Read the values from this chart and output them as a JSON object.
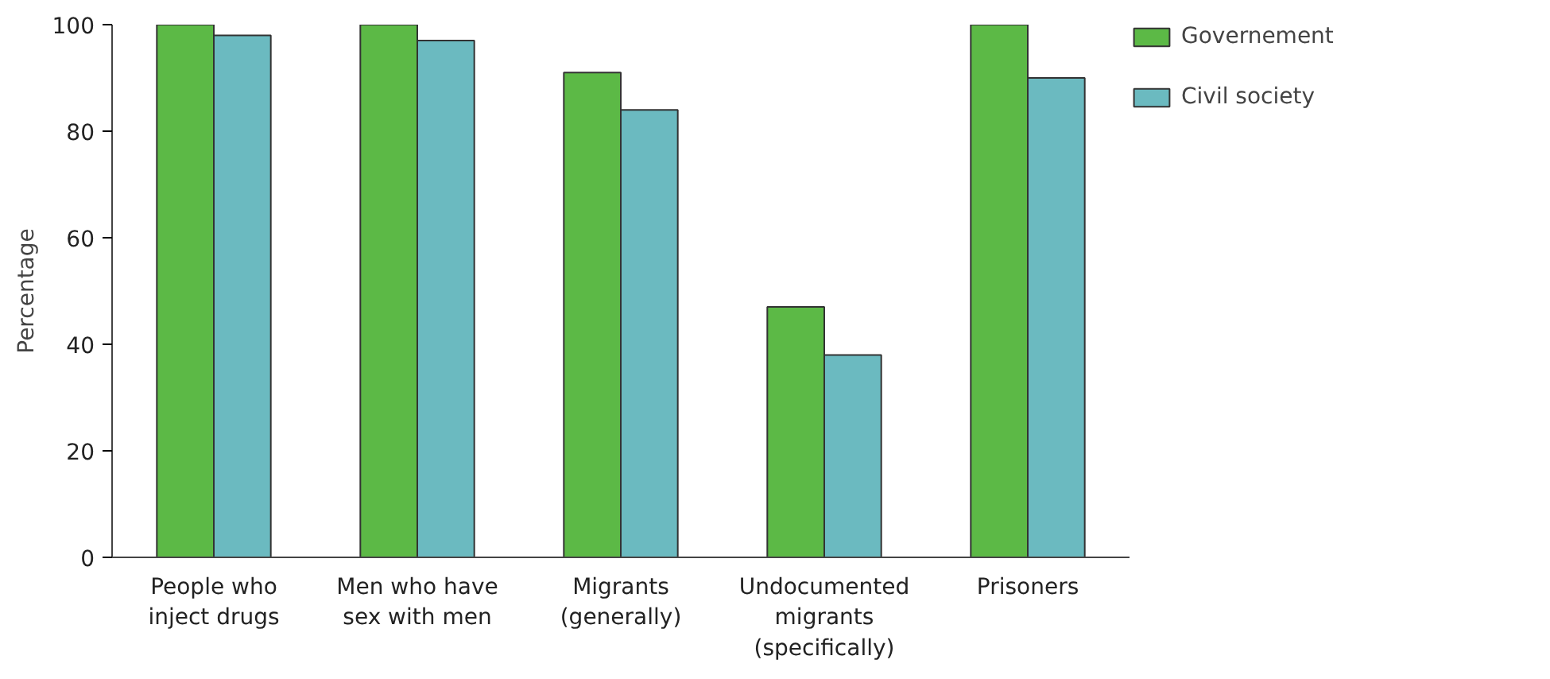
{
  "chart_data": {
    "type": "bar",
    "ylabel": "Percentage",
    "categories": [
      "People who\ninject drugs",
      "Men who have\nsex with men",
      "Migrants\n(generally)",
      "Undocumented\nmigrants\n(specifically)",
      "Prisoners"
    ],
    "series": [
      {
        "name": "Governement",
        "color": "#5cb946",
        "values": [
          100,
          100,
          91,
          47,
          100
        ]
      },
      {
        "name": "Civil society",
        "color": "#6bbac0",
        "values": [
          98,
          97,
          84,
          38,
          90
        ]
      }
    ],
    "ylim": [
      0,
      100
    ],
    "yticks": [
      0,
      20,
      40,
      60,
      80,
      100
    ],
    "grid": false,
    "legend": "top right"
  }
}
